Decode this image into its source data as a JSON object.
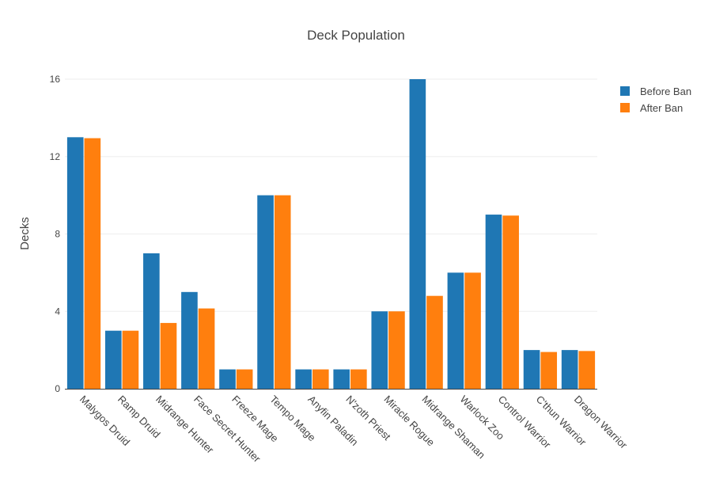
{
  "chart_data": {
    "type": "bar",
    "title": "Deck Population",
    "xlabel": "",
    "ylabel": "Decks",
    "ylim": [
      0,
      16
    ],
    "yticks": [
      0,
      4,
      8,
      12,
      16
    ],
    "grid": true,
    "legend_position": "top-right",
    "categories": [
      "Malygos Druid",
      "Ramp Druid",
      "Midrange Hunter",
      "Face Secret Hunter",
      "Freeze Mage",
      "Tempo Mage",
      "Anyfin Paladin",
      "N'zoth Priest",
      "Miracle Rogue",
      "Midrange Shaman",
      "Warlock Zoo",
      "Control Warrior",
      "C'thun Warrior",
      "Dragon Warrior"
    ],
    "series": [
      {
        "name": "Before Ban",
        "color": "#1f77b4",
        "values": [
          13,
          3,
          7,
          5,
          1,
          10,
          1,
          1,
          4,
          16,
          6,
          9,
          2,
          2
        ]
      },
      {
        "name": "After Ban",
        "color": "#ff7f0e",
        "values": [
          12.95,
          3,
          3.4,
          4.15,
          1,
          10,
          1,
          1,
          4,
          4.8,
          6,
          8.95,
          1.9,
          1.95
        ]
      }
    ]
  }
}
